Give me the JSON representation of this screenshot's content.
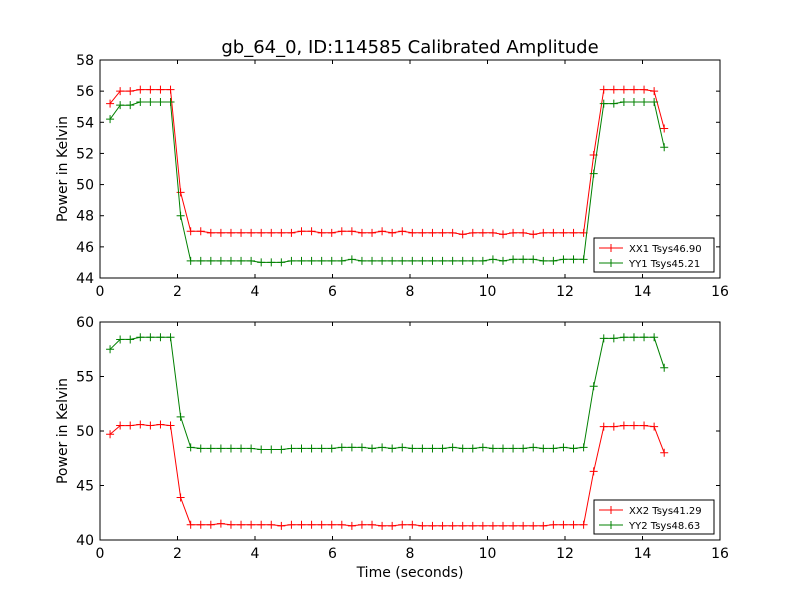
{
  "chart_data": [
    {
      "type": "line",
      "title": "gb_64_0, ID:114585 Calibrated Amplitude",
      "xlabel": "",
      "ylabel": "Power in Kelvin",
      "xlim": [
        0,
        16
      ],
      "ylim": [
        44,
        58
      ],
      "xticks": [
        "0",
        "2",
        "4",
        "6",
        "8",
        "10",
        "12",
        "14",
        "16"
      ],
      "yticks": [
        "44",
        "46",
        "48",
        "50",
        "52",
        "54",
        "56",
        "58"
      ],
      "legend": "lower-right",
      "x": [
        0.26,
        0.52,
        0.78,
        1.04,
        1.3,
        1.56,
        1.82,
        2.08,
        2.34,
        2.6,
        2.86,
        3.12,
        3.38,
        3.64,
        3.9,
        4.16,
        4.42,
        4.68,
        4.94,
        5.2,
        5.46,
        5.72,
        5.98,
        6.24,
        6.5,
        6.76,
        7.02,
        7.28,
        7.54,
        7.8,
        8.06,
        8.32,
        8.58,
        8.84,
        9.1,
        9.36,
        9.62,
        9.88,
        10.14,
        10.4,
        10.66,
        10.92,
        11.18,
        11.44,
        11.7,
        11.96,
        12.22,
        12.48,
        12.74,
        13.0,
        13.26,
        13.52,
        13.78,
        14.04,
        14.3,
        14.56
      ],
      "series": [
        {
          "name": "XX1 Tsys46.90",
          "color": "#ff0000",
          "values": [
            55.2,
            56.0,
            56.0,
            56.1,
            56.1,
            56.1,
            56.1,
            49.5,
            47.0,
            47.0,
            46.9,
            46.9,
            46.9,
            46.9,
            46.9,
            46.9,
            46.9,
            46.9,
            46.9,
            47.0,
            47.0,
            46.9,
            46.9,
            47.0,
            47.0,
            46.9,
            46.9,
            47.0,
            46.9,
            47.0,
            46.9,
            46.9,
            46.9,
            46.9,
            46.9,
            46.8,
            46.9,
            46.9,
            46.9,
            46.8,
            46.9,
            46.9,
            46.8,
            46.9,
            46.9,
            46.9,
            46.9,
            46.9,
            51.9,
            56.1,
            56.1,
            56.1,
            56.1,
            56.1,
            56.0,
            53.6
          ]
        },
        {
          "name": "YY1 Tsys45.21",
          "color": "#008000",
          "values": [
            54.2,
            55.1,
            55.1,
            55.3,
            55.3,
            55.3,
            55.3,
            48.0,
            45.1,
            45.1,
            45.1,
            45.1,
            45.1,
            45.1,
            45.1,
            45.0,
            45.0,
            45.0,
            45.1,
            45.1,
            45.1,
            45.1,
            45.1,
            45.1,
            45.2,
            45.1,
            45.1,
            45.1,
            45.1,
            45.1,
            45.1,
            45.1,
            45.1,
            45.1,
            45.1,
            45.1,
            45.1,
            45.1,
            45.2,
            45.1,
            45.2,
            45.2,
            45.2,
            45.1,
            45.1,
            45.2,
            45.2,
            45.2,
            50.7,
            55.2,
            55.2,
            55.3,
            55.3,
            55.3,
            55.3,
            52.4
          ]
        }
      ]
    },
    {
      "type": "line",
      "title": "",
      "xlabel": "Time (seconds)",
      "ylabel": "Power in Kelvin",
      "xlim": [
        0,
        16
      ],
      "ylim": [
        40,
        60
      ],
      "xticks": [
        "0",
        "2",
        "4",
        "6",
        "8",
        "10",
        "12",
        "14",
        "16"
      ],
      "yticks": [
        "40",
        "45",
        "50",
        "55",
        "60"
      ],
      "legend": "lower-right",
      "x": [
        0.26,
        0.52,
        0.78,
        1.04,
        1.3,
        1.56,
        1.82,
        2.08,
        2.34,
        2.6,
        2.86,
        3.12,
        3.38,
        3.64,
        3.9,
        4.16,
        4.42,
        4.68,
        4.94,
        5.2,
        5.46,
        5.72,
        5.98,
        6.24,
        6.5,
        6.76,
        7.02,
        7.28,
        7.54,
        7.8,
        8.06,
        8.32,
        8.58,
        8.84,
        9.1,
        9.36,
        9.62,
        9.88,
        10.14,
        10.4,
        10.66,
        10.92,
        11.18,
        11.44,
        11.7,
        11.96,
        12.22,
        12.48,
        12.74,
        13.0,
        13.26,
        13.52,
        13.78,
        14.04,
        14.3,
        14.56
      ],
      "series": [
        {
          "name": "XX2 Tsys41.29",
          "color": "#ff0000",
          "values": [
            49.7,
            50.5,
            50.5,
            50.6,
            50.5,
            50.6,
            50.5,
            43.9,
            41.4,
            41.4,
            41.4,
            41.5,
            41.4,
            41.4,
            41.4,
            41.4,
            41.4,
            41.3,
            41.4,
            41.4,
            41.4,
            41.4,
            41.4,
            41.4,
            41.3,
            41.4,
            41.4,
            41.3,
            41.3,
            41.4,
            41.4,
            41.3,
            41.3,
            41.3,
            41.3,
            41.3,
            41.3,
            41.3,
            41.3,
            41.3,
            41.3,
            41.3,
            41.3,
            41.3,
            41.4,
            41.4,
            41.4,
            41.4,
            46.3,
            50.4,
            50.4,
            50.5,
            50.5,
            50.5,
            50.4,
            48.0
          ]
        },
        {
          "name": "YY2 Tsys48.63",
          "color": "#008000",
          "values": [
            57.5,
            58.4,
            58.4,
            58.6,
            58.6,
            58.6,
            58.6,
            51.3,
            48.5,
            48.4,
            48.4,
            48.4,
            48.4,
            48.4,
            48.4,
            48.3,
            48.3,
            48.3,
            48.4,
            48.4,
            48.4,
            48.4,
            48.4,
            48.5,
            48.5,
            48.5,
            48.4,
            48.5,
            48.4,
            48.5,
            48.4,
            48.4,
            48.4,
            48.4,
            48.5,
            48.4,
            48.4,
            48.5,
            48.4,
            48.4,
            48.4,
            48.4,
            48.5,
            48.4,
            48.4,
            48.5,
            48.4,
            48.5,
            54.1,
            58.5,
            58.5,
            58.6,
            58.6,
            58.6,
            58.6,
            55.8
          ]
        }
      ]
    }
  ]
}
